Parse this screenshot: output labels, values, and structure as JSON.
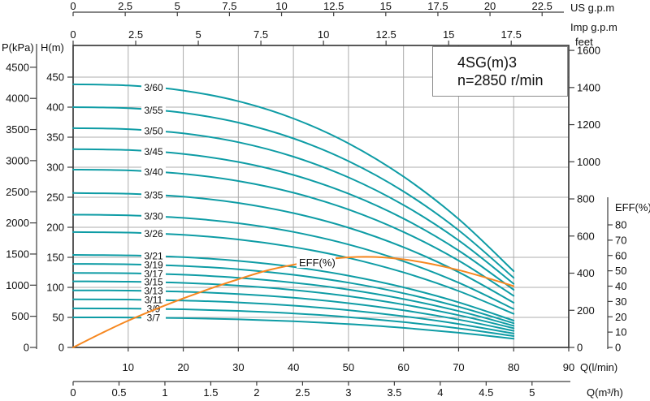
{
  "title": {
    "model": "4SG(m)3",
    "speed": "n=2850 r/min"
  },
  "axis_labels": {
    "us_gpm": "US g.p.m",
    "imp_gpm": "Imp g.p.m",
    "feet": "feet",
    "p_kpa": "P(kPa)",
    "h_m": "H(m)",
    "eff_axis": "EFF(%)",
    "q_lmin": "Q(l/min)",
    "q_m3h": "Q(m³/h)"
  },
  "colors": {
    "curve_teal": "#0e9ca5",
    "eff_orange": "#f6871f",
    "grid": "#acacac",
    "axis": "#3c3c3c",
    "text": "#101010",
    "box_border": "#8c8c8c",
    "background": "#ffffff"
  },
  "chart_data": {
    "type": "line",
    "title": "4SG(m)3",
    "subtitle": "n=2850 r/min",
    "grid": "on",
    "x_axis_lmin": {
      "label": "Q(l/min)",
      "min": 0,
      "max": 90,
      "ticks": [
        10,
        20,
        30,
        40,
        50,
        60,
        70,
        80,
        90
      ]
    },
    "x_axis_m3h": {
      "label": "Q(m³/h)",
      "ticks": [
        0,
        0.5,
        1,
        1.5,
        2,
        2.5,
        3,
        3.5,
        4,
        4.5,
        5
      ],
      "lmin_per_unit": 16.6667
    },
    "x_axis_us_gpm": {
      "label": "US g.p.m",
      "ticks": [
        0,
        2.5,
        5,
        7.5,
        10,
        12.5,
        15,
        17.5,
        20,
        22.5
      ],
      "lmin_per_unit": 3.785
    },
    "x_axis_imp_gpm": {
      "label": "Imp g.p.m",
      "ticks": [
        0,
        2.5,
        5,
        7.5,
        10,
        12.5,
        15,
        17.5
      ],
      "lmin_per_unit": 4.546
    },
    "y_axis_h_m": {
      "label": "H(m)",
      "min": 0,
      "max": 500,
      "ticks": [
        0,
        50,
        100,
        150,
        200,
        250,
        300,
        350,
        400,
        450
      ]
    },
    "y_axis_p_kpa": {
      "label": "P(kPa)",
      "ticks": [
        0,
        500,
        1000,
        1500,
        2000,
        2500,
        3000,
        3500,
        4000,
        4500
      ]
    },
    "y_axis_feet": {
      "label": "feet",
      "ticks": [
        0,
        200,
        400,
        600,
        800,
        1000,
        1200,
        1400,
        1600
      ]
    },
    "y_axis_eff": {
      "label": "EFF(%)",
      "min": 0,
      "max": 80,
      "ticks": [
        0,
        10,
        20,
        30,
        40,
        50,
        60,
        70,
        80
      ]
    },
    "flow_points_lmin": [
      0,
      10,
      20,
      30,
      40,
      50,
      60,
      70,
      80
    ],
    "series": [
      {
        "name": "3/60",
        "head_m": [
          438,
          436.1,
          427.6,
          409.9,
          381.1,
          339.7,
          284.3,
          213.8,
          127
        ]
      },
      {
        "name": "3/55",
        "head_m": [
          400,
          398.3,
          390.5,
          374.3,
          348.0,
          310.2,
          259.6,
          195.2,
          116
        ]
      },
      {
        "name": "3/50",
        "head_m": [
          365,
          363.4,
          356.3,
          341.6,
          317.6,
          283.1,
          237.0,
          178.3,
          106
        ]
      },
      {
        "name": "3/45",
        "head_m": [
          330,
          328.6,
          322.2,
          308.8,
          287.2,
          256.0,
          214.4,
          161.3,
          96
        ]
      },
      {
        "name": "3/40",
        "head_m": [
          296,
          294.7,
          289.0,
          277.0,
          257.6,
          229.6,
          192.2,
          144.6,
          86
        ]
      },
      {
        "name": "3/35",
        "head_m": [
          257,
          255.9,
          250.9,
          240.5,
          223.6,
          199.3,
          166.8,
          125.4,
          74.5
        ]
      },
      {
        "name": "3/30",
        "head_m": [
          221,
          220.0,
          215.7,
          206.8,
          192.3,
          171.4,
          143.4,
          107.8,
          64
        ]
      },
      {
        "name": "3/26",
        "head_m": [
          192,
          191.2,
          187.4,
          179.7,
          167.1,
          149.0,
          124.8,
          93.9,
          56
        ]
      },
      {
        "name": "3/21",
        "head_m": [
          154,
          153.3,
          150.3,
          144.1,
          134.0,
          119.5,
          100.0,
          75.2,
          44.7
        ]
      },
      {
        "name": "3/19",
        "head_m": [
          139,
          138.4,
          135.7,
          130.1,
          120.9,
          107.8,
          90.2,
          67.8,
          40.3
        ]
      },
      {
        "name": "3/17",
        "head_m": [
          124,
          123.5,
          121.1,
          116.0,
          107.9,
          96.2,
          80.5,
          60.6,
          36
        ]
      },
      {
        "name": "3/15",
        "head_m": [
          110,
          109.5,
          107.4,
          102.9,
          95.7,
          85.3,
          71.4,
          53.7,
          31.9
        ]
      },
      {
        "name": "3/13",
        "head_m": [
          95,
          94.6,
          92.7,
          88.9,
          82.7,
          73.7,
          61.7,
          46.4,
          27.6
        ]
      },
      {
        "name": "3/11",
        "head_m": [
          80,
          79.7,
          78.1,
          74.9,
          69.6,
          62.0,
          51.9,
          39.0,
          23.2
        ]
      },
      {
        "name": "3/9",
        "head_m": [
          65,
          64.7,
          63.5,
          60.8,
          56.6,
          50.4,
          42.2,
          31.8,
          18.9
        ]
      },
      {
        "name": "3/7",
        "head_m": [
          50,
          49.8,
          48.8,
          46.8,
          43.5,
          38.8,
          32.5,
          24.4,
          14.5
        ]
      }
    ],
    "efficiency": {
      "name": "EFF(%)",
      "flow_lmin": [
        0,
        5,
        10,
        15,
        20,
        25,
        30,
        35,
        40,
        45,
        50,
        55,
        60,
        65,
        70,
        75,
        80
      ],
      "eff_pct": [
        0,
        9,
        17.5,
        25,
        32,
        38.5,
        44.5,
        50,
        54,
        57,
        58.8,
        59,
        57.5,
        54.5,
        50.5,
        45.5,
        40
      ]
    }
  }
}
